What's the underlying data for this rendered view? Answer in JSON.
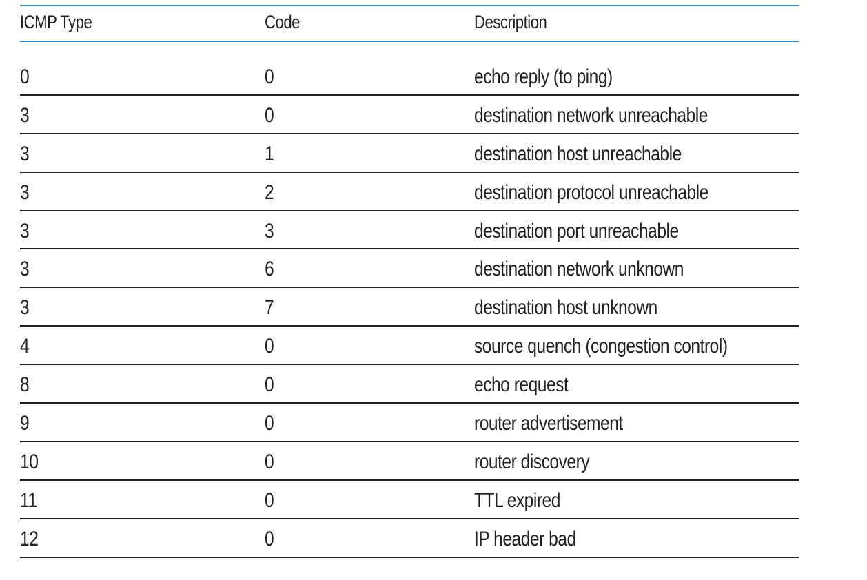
{
  "table": {
    "headers": {
      "type": "ICMP Type",
      "code": "Code",
      "description": "Description"
    },
    "rows": [
      {
        "type": "0",
        "code": "0",
        "description": "echo reply (to ping)"
      },
      {
        "type": "3",
        "code": "0",
        "description": "destination network unreachable"
      },
      {
        "type": "3",
        "code": "1",
        "description": "destination host unreachable"
      },
      {
        "type": "3",
        "code": "2",
        "description": "destination protocol unreachable"
      },
      {
        "type": "3",
        "code": "3",
        "description": "destination port unreachable"
      },
      {
        "type": "3",
        "code": "6",
        "description": "destination network unknown"
      },
      {
        "type": "3",
        "code": "7",
        "description": "destination host unknown"
      },
      {
        "type": "4",
        "code": "0",
        "description": "source quench (congestion control)"
      },
      {
        "type": "8",
        "code": "0",
        "description": "echo request"
      },
      {
        "type": "9",
        "code": "0",
        "description": "router advertisement"
      },
      {
        "type": "10",
        "code": "0",
        "description": "router discovery"
      },
      {
        "type": "11",
        "code": "0",
        "description": "TTL expired"
      },
      {
        "type": "12",
        "code": "0",
        "description": "IP header bad"
      }
    ]
  },
  "colors": {
    "header_rule": "#3b86a6",
    "row_rule": "#231f20",
    "text": "#231f20"
  }
}
